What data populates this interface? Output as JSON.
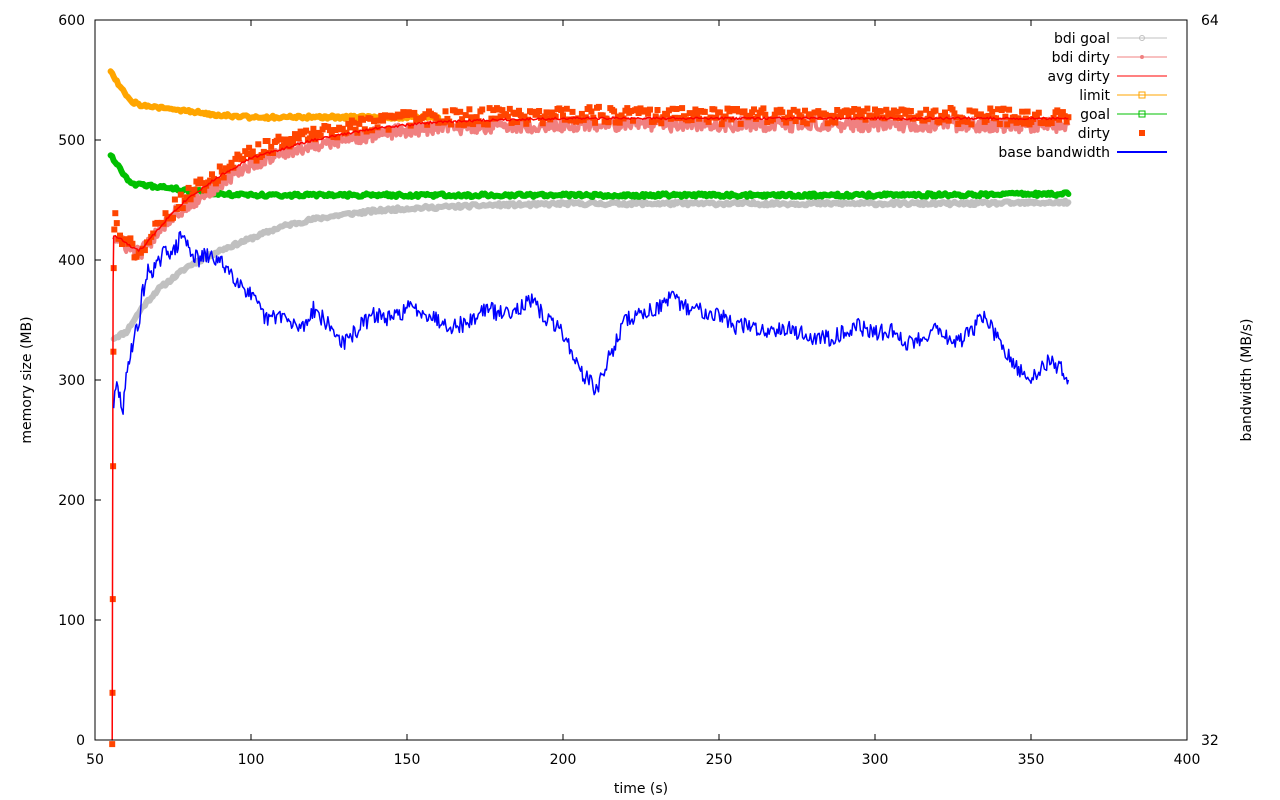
{
  "chart_data": {
    "type": "line",
    "title": "",
    "xlabel": "time (s)",
    "ylabel": "memory size (MB)",
    "y2label": "bandwidth (MB/s)",
    "xlim": [
      50,
      400
    ],
    "ylim": [
      0,
      600
    ],
    "y2lim": [
      32,
      64
    ],
    "xticks": [
      "50",
      "100",
      "150",
      "200",
      "250",
      "300",
      "350",
      "400"
    ],
    "yticks": [
      "0",
      "100",
      "200",
      "300",
      "400",
      "500",
      "600"
    ],
    "y2ticks": [
      "32",
      "64"
    ],
    "grid": false,
    "legend_position": "top-right",
    "series": [
      {
        "name": "bdi goal",
        "axis": "y",
        "color": "#c0c0c0",
        "style": "thick-line",
        "x": [
          56,
          60,
          65,
          70,
          75,
          80,
          90,
          100,
          110,
          120,
          130,
          140,
          150,
          160,
          170,
          180,
          190,
          200,
          210,
          220,
          230,
          250,
          270,
          300,
          330,
          362
        ],
        "y": [
          335,
          340,
          360,
          375,
          385,
          395,
          408,
          418,
          428,
          434,
          438,
          441,
          443,
          444,
          445,
          446,
          446,
          447,
          447,
          447,
          447,
          447,
          447,
          447,
          447,
          448
        ]
      },
      {
        "name": "bdi dirty",
        "axis": "y",
        "color": "#f08080",
        "style": "noisy-line",
        "x": [
          56,
          58,
          60,
          62,
          64,
          66,
          68,
          70,
          72,
          75,
          80,
          85,
          90,
          95,
          100,
          110,
          120,
          130,
          140,
          150,
          160,
          170,
          180,
          190,
          200,
          220,
          250,
          300,
          330,
          362
        ],
        "y": [
          420,
          415,
          412,
          408,
          405,
          410,
          415,
          425,
          430,
          438,
          445,
          455,
          462,
          472,
          480,
          490,
          496,
          500,
          505,
          508,
          510,
          511,
          512,
          512,
          513,
          513,
          513,
          513,
          513,
          512
        ]
      },
      {
        "name": "avg dirty",
        "axis": "y",
        "color": "#ff0000",
        "style": "line",
        "x": [
          55.5,
          55.8,
          56,
          58,
          60,
          62,
          64,
          66,
          70,
          75,
          80,
          90,
          100,
          120,
          140,
          160,
          180,
          200,
          250,
          300,
          362
        ],
        "y": [
          0,
          380,
          420,
          418,
          414,
          410,
          408,
          412,
          425,
          440,
          452,
          470,
          485,
          500,
          510,
          515,
          517,
          518,
          518,
          518,
          518
        ]
      },
      {
        "name": "limit",
        "axis": "y",
        "color": "#ffa500",
        "style": "thick-line",
        "x": [
          55,
          56,
          58,
          60,
          62,
          65,
          70,
          80,
          90,
          100,
          110,
          120,
          130,
          140,
          150,
          160
        ],
        "y": [
          558,
          553,
          545,
          538,
          532,
          529,
          527,
          524,
          521,
          519,
          519,
          519,
          519,
          519,
          519,
          519
        ]
      },
      {
        "name": "goal",
        "axis": "y",
        "color": "#00c000",
        "style": "thick-line",
        "x": [
          55,
          56,
          58,
          60,
          62,
          65,
          70,
          80,
          90,
          100,
          120,
          150,
          200,
          250,
          300,
          362
        ],
        "y": [
          488,
          484,
          476,
          469,
          464,
          462,
          461,
          458,
          455,
          454,
          454,
          454,
          454,
          454,
          454,
          455
        ]
      },
      {
        "name": "dirty",
        "axis": "y",
        "color": "#ff4500",
        "style": "points",
        "x": [
          55.5,
          55.6,
          55.7,
          55.8,
          55.9,
          56,
          56.2,
          56.5,
          57,
          58,
          60,
          62,
          64,
          66,
          68,
          70,
          72,
          75,
          80,
          85,
          90,
          95,
          100,
          110,
          120,
          130,
          140,
          150,
          160,
          170,
          180,
          190,
          200,
          220,
          240,
          260,
          280,
          300,
          320,
          340,
          362
        ],
        "y": [
          0,
          40,
          120,
          230,
          330,
          400,
          430,
          435,
          425,
          418,
          415,
          410,
          407,
          412,
          418,
          428,
          435,
          442,
          455,
          462,
          472,
          480,
          488,
          498,
          505,
          510,
          514,
          517,
          518,
          519,
          520,
          520,
          520,
          521,
          520,
          520,
          520,
          520,
          520,
          520,
          519
        ]
      },
      {
        "name": "base bandwidth",
        "axis": "y",
        "color": "#0000ff",
        "style": "noisy-line",
        "x": [
          56,
          57,
          58,
          59,
          60,
          61,
          62,
          63,
          64,
          65,
          67,
          70,
          73,
          75,
          78,
          80,
          83,
          85,
          88,
          90,
          92,
          95,
          97,
          100,
          105,
          110,
          113,
          117,
          120,
          125,
          130,
          135,
          140,
          145,
          150,
          155,
          160,
          165,
          170,
          175,
          180,
          185,
          190,
          195,
          200,
          205,
          208,
          211,
          215,
          220,
          225,
          230,
          235,
          240,
          245,
          250,
          255,
          260,
          265,
          270,
          275,
          280,
          285,
          290,
          295,
          300,
          305,
          310,
          315,
          320,
          325,
          330,
          335,
          340,
          345,
          350,
          355,
          360,
          362
        ],
        "y": [
          280,
          295,
          285,
          275,
          300,
          320,
          330,
          340,
          345,
          370,
          390,
          395,
          410,
          405,
          422,
          410,
          400,
          403,
          402,
          398,
          395,
          385,
          380,
          370,
          350,
          355,
          345,
          345,
          360,
          345,
          330,
          345,
          355,
          350,
          360,
          358,
          350,
          345,
          348,
          360,
          355,
          360,
          365,
          350,
          340,
          310,
          300,
          292,
          320,
          350,
          355,
          360,
          368,
          360,
          358,
          355,
          345,
          345,
          340,
          345,
          340,
          335,
          335,
          340,
          345,
          338,
          342,
          330,
          335,
          345,
          330,
          338,
          355,
          330,
          310,
          300,
          315,
          310,
          300
        ]
      }
    ]
  }
}
